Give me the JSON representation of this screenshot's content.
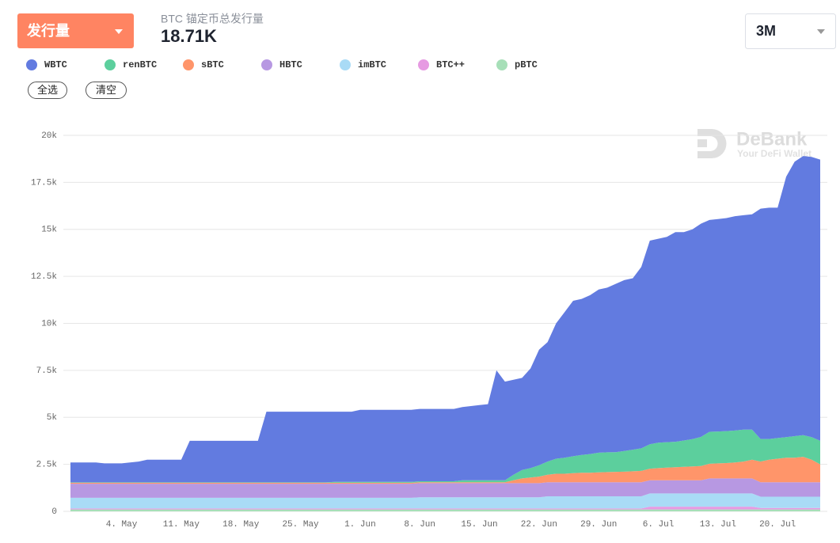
{
  "controls": {
    "metric": "发行量",
    "subtitle": "BTC 锚定币总发行量",
    "total": "18.71K",
    "range": "3M",
    "select_all": "全选",
    "clear": "清空"
  },
  "watermark": {
    "brand": "DeBank",
    "tagline": "Your DeFi Wallet"
  },
  "chart_data": {
    "type": "area",
    "stacked": true,
    "grid": true,
    "legend": "top-left",
    "categories": [
      null,
      null,
      null,
      null,
      null,
      null,
      "4. May",
      null,
      null,
      null,
      null,
      null,
      null,
      "11. May",
      null,
      null,
      null,
      null,
      null,
      null,
      "18. May",
      null,
      null,
      null,
      null,
      null,
      null,
      "25. May",
      null,
      null,
      null,
      null,
      null,
      null,
      "1. Jun",
      null,
      null,
      null,
      null,
      null,
      null,
      "8. Jun",
      null,
      null,
      null,
      null,
      null,
      null,
      "15. Jun",
      null,
      null,
      null,
      null,
      null,
      null,
      "22. Jun",
      null,
      null,
      null,
      null,
      null,
      null,
      "29. Jun",
      null,
      null,
      null,
      null,
      null,
      null,
      "6. Jul",
      null,
      null,
      null,
      null,
      null,
      null,
      "13. Jul",
      null,
      null,
      null,
      null,
      null,
      null,
      "20. Jul",
      null,
      null,
      null,
      null,
      null
    ],
    "ylim": [
      0,
      20000
    ],
    "yticks": [
      0,
      {
        "value": 2500,
        "label": "2.5k"
      },
      {
        "value": 5000,
        "label": "5k"
      },
      {
        "value": 7500,
        "label": "7.5k"
      },
      {
        "value": 10000,
        "label": "10k"
      },
      {
        "value": 12500,
        "label": "12.5k"
      },
      {
        "value": 15000,
        "label": "15k"
      },
      {
        "value": 17500,
        "label": "17.5k"
      },
      {
        "value": 20000,
        "label": "20k"
      }
    ],
    "series": [
      {
        "name": "WBTC",
        "color": "#627be0",
        "values": [
          1060,
          1060,
          1060,
          1060,
          1010,
          1010,
          1010,
          1060,
          1110,
          1210,
          1210,
          1210,
          1210,
          1210,
          2210,
          2210,
          2210,
          2210,
          2210,
          2210,
          2210,
          2210,
          2210,
          3760,
          3760,
          3760,
          3760,
          3760,
          3760,
          3760,
          3760,
          3730,
          3730,
          3730,
          3830,
          3830,
          3830,
          3830,
          3830,
          3830,
          3830,
          3850,
          3850,
          3850,
          3850,
          3850,
          3900,
          3950,
          4000,
          4050,
          5850,
          5250,
          5050,
          4900,
          5300,
          6150,
          6350,
          7200,
          7750,
          8270,
          8300,
          8450,
          8680,
          8760,
          8950,
          9090,
          9120,
          9650,
          10830,
          10850,
          10920,
          11150,
          11080,
          11160,
          11340,
          11270,
          11300,
          11330,
          11400,
          11400,
          11450,
          12250,
          12300,
          12250,
          13850,
          14600,
          14850,
          14900,
          14960
        ]
      },
      {
        "name": "renBTC",
        "color": "#5ccf9d",
        "values": [
          20,
          20,
          20,
          20,
          20,
          20,
          20,
          20,
          20,
          20,
          20,
          20,
          20,
          20,
          20,
          20,
          20,
          20,
          20,
          20,
          20,
          20,
          20,
          20,
          20,
          20,
          20,
          20,
          20,
          20,
          20,
          50,
          50,
          50,
          50,
          50,
          50,
          50,
          50,
          50,
          50,
          50,
          50,
          50,
          50,
          50,
          100,
          100,
          100,
          100,
          100,
          100,
          300,
          450,
          500,
          600,
          700,
          800,
          850,
          900,
          950,
          1000,
          1050,
          1050,
          1050,
          1100,
          1150,
          1200,
          1300,
          1350,
          1350,
          1350,
          1400,
          1450,
          1550,
          1700,
          1700,
          1700,
          1700,
          1700,
          1600,
          1200,
          1100,
          1100,
          1100,
          1150,
          1150,
          1200,
          1250
        ]
      },
      {
        "name": "sBTC",
        "color": "#ff956a",
        "values": [
          50,
          50,
          50,
          50,
          50,
          50,
          50,
          50,
          50,
          50,
          50,
          50,
          50,
          50,
          50,
          50,
          50,
          50,
          50,
          50,
          50,
          50,
          50,
          50,
          50,
          50,
          50,
          50,
          50,
          50,
          50,
          50,
          50,
          50,
          50,
          50,
          50,
          50,
          50,
          50,
          50,
          50,
          50,
          50,
          50,
          50,
          50,
          50,
          50,
          50,
          50,
          50,
          150,
          250,
          300,
          350,
          400,
          450,
          450,
          480,
          500,
          500,
          520,
          540,
          550,
          560,
          580,
          600,
          620,
          650,
          680,
          700,
          720,
          740,
          760,
          780,
          800,
          820,
          850,
          900,
          1000,
          1100,
          1200,
          1250,
          1300,
          1300,
          1350,
          1200,
          950
        ]
      },
      {
        "name": "HBTC",
        "color": "#b798e2",
        "values": [
          750,
          750,
          750,
          750,
          750,
          750,
          750,
          750,
          750,
          750,
          750,
          750,
          750,
          750,
          750,
          750,
          750,
          750,
          750,
          750,
          750,
          750,
          750,
          750,
          750,
          750,
          750,
          750,
          750,
          750,
          750,
          750,
          750,
          750,
          750,
          750,
          750,
          750,
          750,
          750,
          750,
          750,
          750,
          750,
          750,
          750,
          750,
          750,
          750,
          750,
          750,
          750,
          750,
          750,
          750,
          750,
          750,
          750,
          750,
          750,
          750,
          750,
          750,
          750,
          750,
          750,
          750,
          750,
          700,
          700,
          700,
          700,
          700,
          700,
          700,
          800,
          800,
          800,
          800,
          800,
          800,
          770,
          770,
          770,
          770,
          770,
          770,
          770,
          770
        ]
      },
      {
        "name": "imBTC",
        "color": "#a9dbf6",
        "values": [
          570,
          570,
          570,
          570,
          570,
          570,
          570,
          570,
          570,
          570,
          570,
          570,
          570,
          570,
          570,
          570,
          570,
          570,
          570,
          570,
          570,
          570,
          570,
          570,
          570,
          570,
          570,
          570,
          570,
          570,
          570,
          570,
          570,
          570,
          570,
          570,
          570,
          570,
          570,
          570,
          570,
          600,
          600,
          600,
          600,
          600,
          600,
          600,
          600,
          600,
          600,
          600,
          600,
          600,
          600,
          600,
          650,
          650,
          650,
          650,
          650,
          650,
          650,
          650,
          650,
          650,
          650,
          650,
          700,
          700,
          700,
          700,
          700,
          700,
          700,
          700,
          700,
          700,
          700,
          700,
          700,
          600,
          600,
          600,
          600,
          600,
          600,
          600,
          600
        ]
      },
      {
        "name": "BTC++",
        "color": "#e69ae2",
        "values": [
          50,
          50,
          50,
          50,
          50,
          50,
          50,
          50,
          50,
          50,
          50,
          50,
          50,
          50,
          50,
          50,
          50,
          50,
          50,
          50,
          50,
          50,
          50,
          50,
          50,
          50,
          50,
          50,
          50,
          50,
          50,
          50,
          50,
          50,
          50,
          50,
          50,
          50,
          50,
          50,
          50,
          50,
          50,
          50,
          50,
          50,
          50,
          50,
          50,
          50,
          50,
          50,
          50,
          50,
          50,
          50,
          50,
          50,
          50,
          50,
          50,
          50,
          50,
          50,
          50,
          50,
          50,
          50,
          150,
          150,
          150,
          150,
          150,
          150,
          150,
          150,
          150,
          150,
          150,
          150,
          150,
          80,
          80,
          80,
          80,
          80,
          80,
          80,
          80
        ]
      },
      {
        "name": "pBTC",
        "color": "#a7dfb8",
        "values": [
          100,
          100,
          100,
          100,
          100,
          100,
          100,
          100,
          100,
          100,
          100,
          100,
          100,
          100,
          100,
          100,
          100,
          100,
          100,
          100,
          100,
          100,
          100,
          100,
          100,
          100,
          100,
          100,
          100,
          100,
          100,
          100,
          100,
          100,
          100,
          100,
          100,
          100,
          100,
          100,
          100,
          100,
          100,
          100,
          100,
          100,
          100,
          100,
          100,
          100,
          100,
          100,
          100,
          100,
          100,
          100,
          100,
          100,
          100,
          100,
          100,
          100,
          100,
          100,
          100,
          100,
          100,
          100,
          100,
          100,
          100,
          100,
          100,
          100,
          100,
          100,
          100,
          100,
          100,
          100,
          100,
          100,
          100,
          100,
          100,
          100,
          100,
          100,
          100
        ]
      }
    ]
  }
}
